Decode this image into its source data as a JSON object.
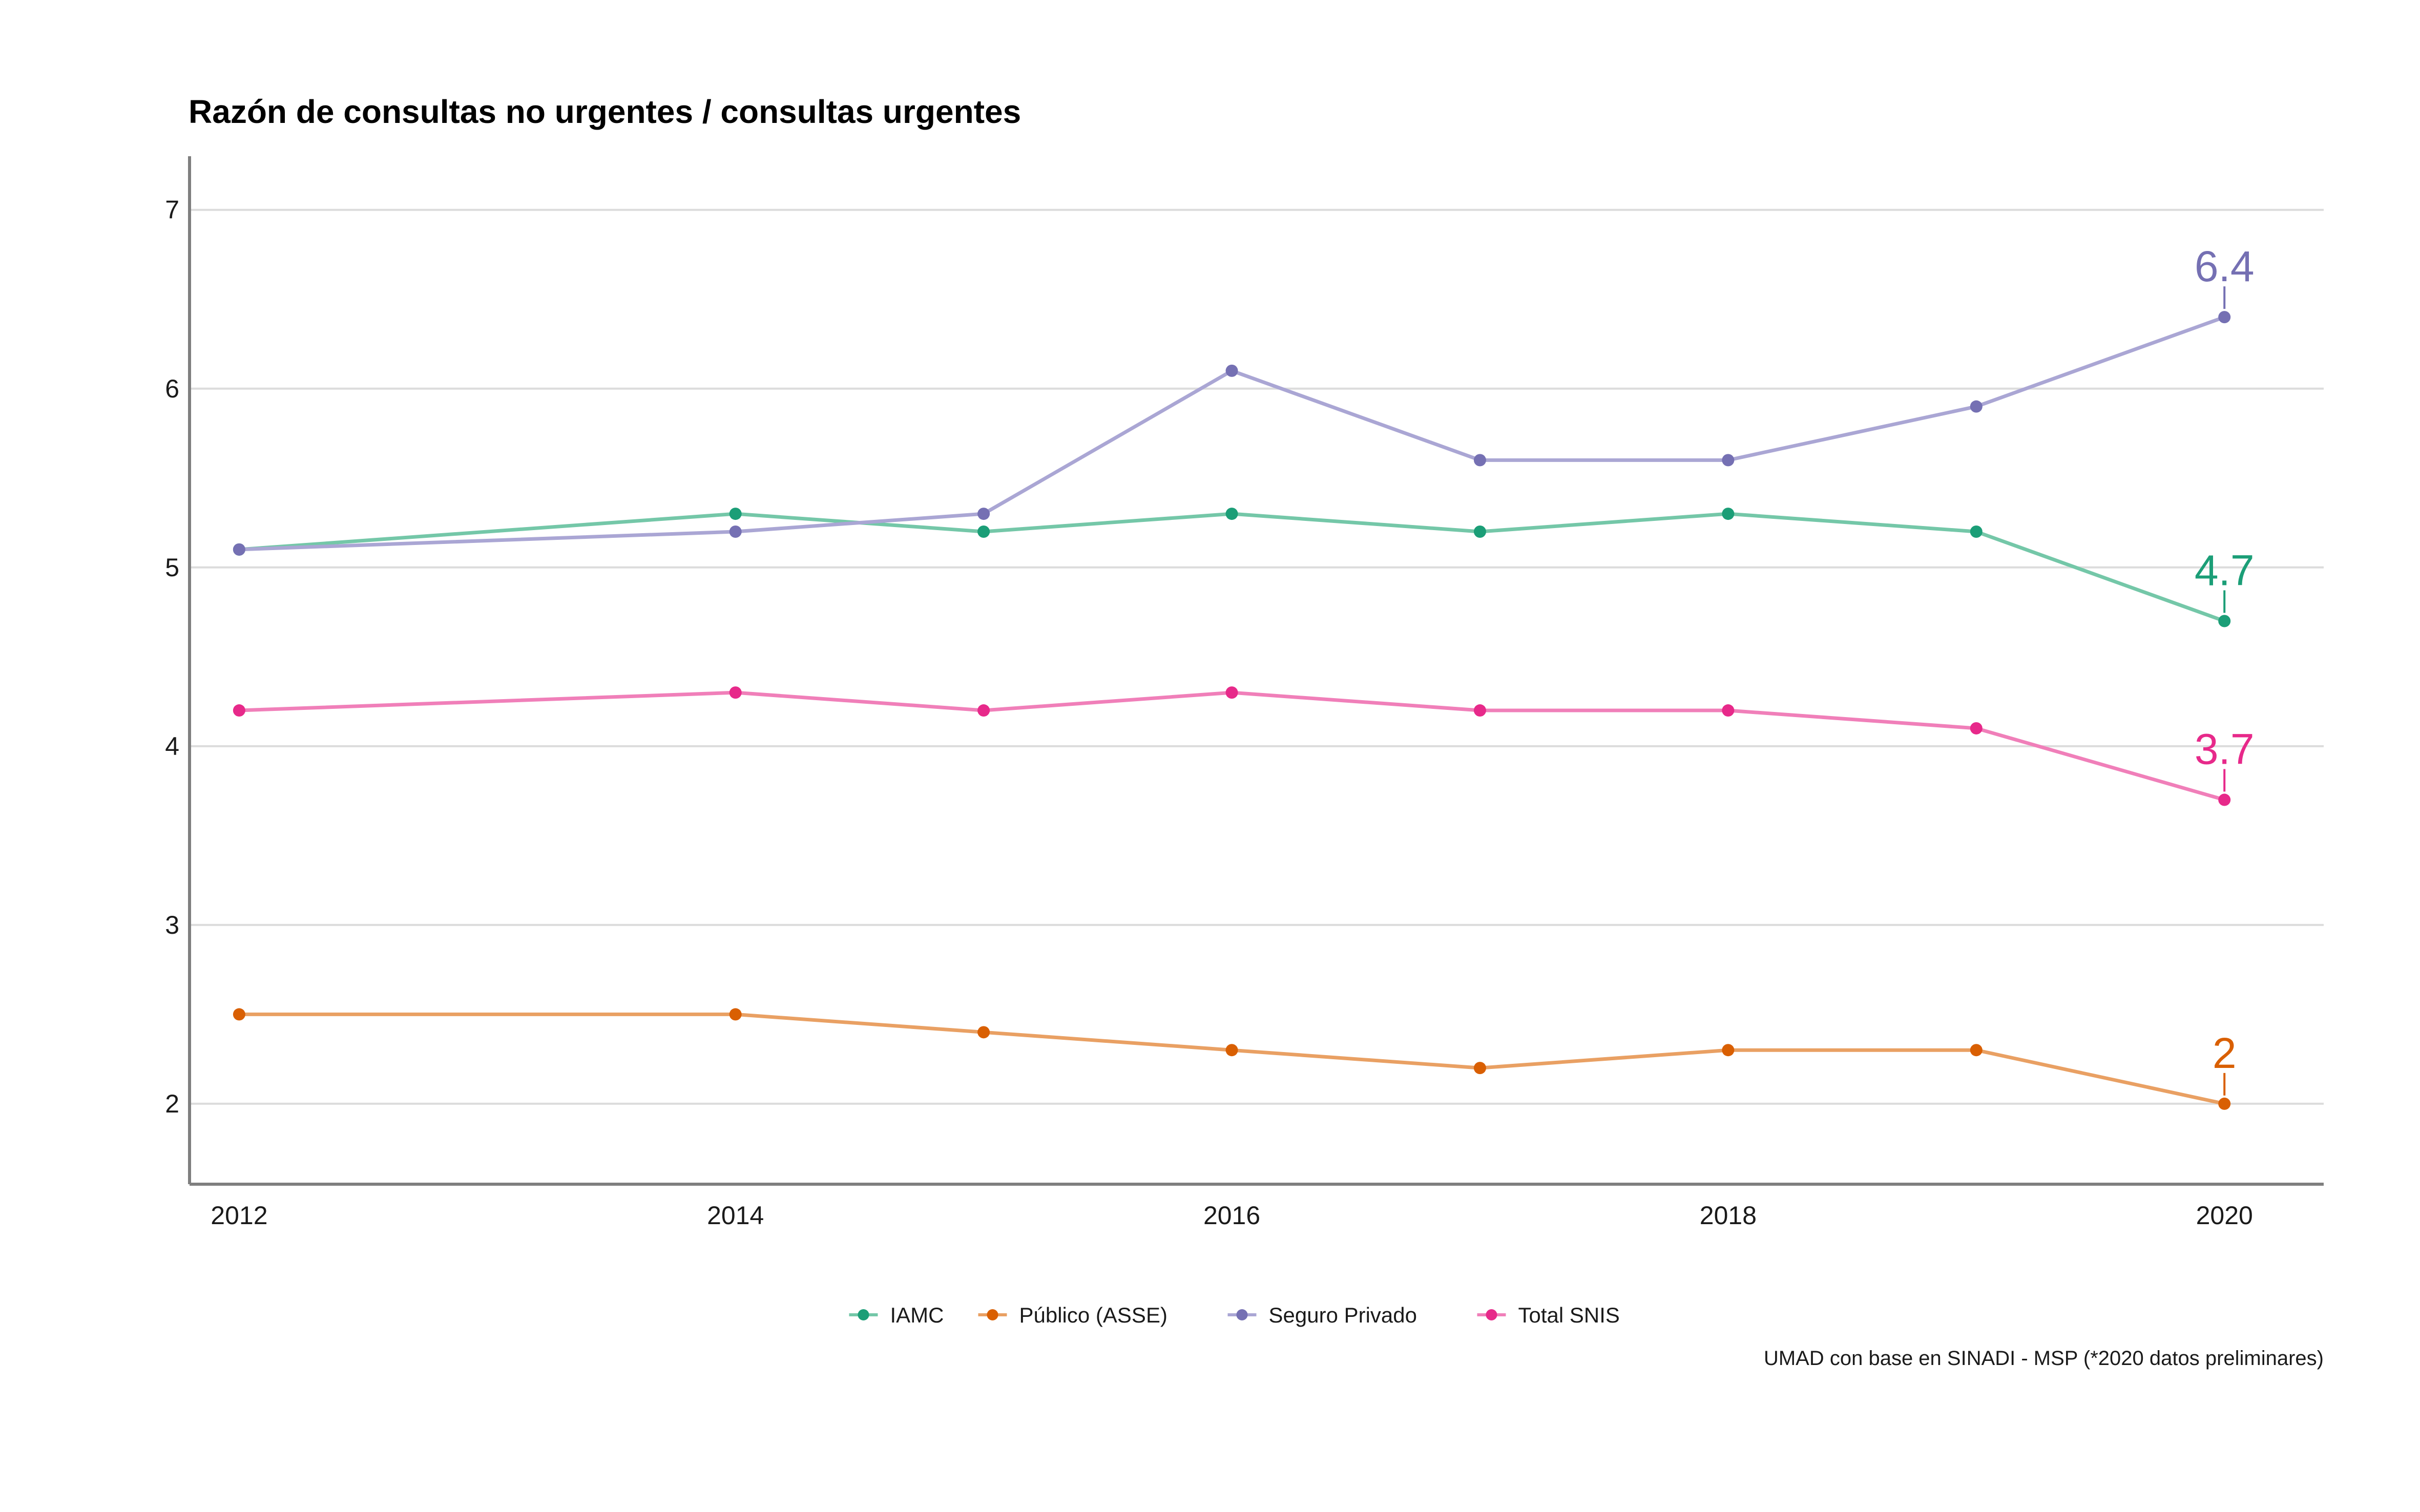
{
  "chart_data": {
    "type": "line",
    "title": "Razón de consultas no urgentes / consultas urgentes",
    "xlabel": "",
    "ylabel": "",
    "x": [
      2012,
      2014,
      2015,
      2016,
      2017,
      2018,
      2019,
      2020
    ],
    "xlim": [
      2011.8,
      2020.4
    ],
    "ylim": [
      1.55,
      7.3
    ],
    "x_ticks": [
      2012,
      2014,
      2016,
      2018,
      2020
    ],
    "y_ticks": [
      2,
      3,
      4,
      5,
      6,
      7
    ],
    "grid": "horizontal",
    "legend_position": "bottom",
    "series": [
      {
        "name": "IAMC",
        "color": "#1b9e77",
        "line_color": "#74c7a8",
        "values": [
          5.1,
          5.3,
          5.2,
          5.3,
          5.2,
          5.3,
          5.2,
          4.7
        ],
        "end_label": "4.7"
      },
      {
        "name": "Público (ASSE)",
        "color": "#d95f02",
        "line_color": "#e9a063",
        "values": [
          2.5,
          2.5,
          2.4,
          2.3,
          2.2,
          2.3,
          2.3,
          2.0
        ],
        "end_label": "2"
      },
      {
        "name": "Seguro Privado",
        "color": "#7570b3",
        "line_color": "#aaa6d4",
        "values": [
          5.1,
          5.2,
          5.3,
          6.1,
          5.6,
          5.6,
          5.9,
          6.4
        ],
        "end_label": "6.4"
      },
      {
        "name": "Total SNIS",
        "color": "#e7298a",
        "line_color": "#f07fb9",
        "values": [
          4.2,
          4.3,
          4.2,
          4.3,
          4.2,
          4.2,
          4.1,
          3.7
        ],
        "end_label": "3.7"
      }
    ],
    "caption": "UMAD con base en SINADI - MSP (*2020 datos preliminares)"
  }
}
